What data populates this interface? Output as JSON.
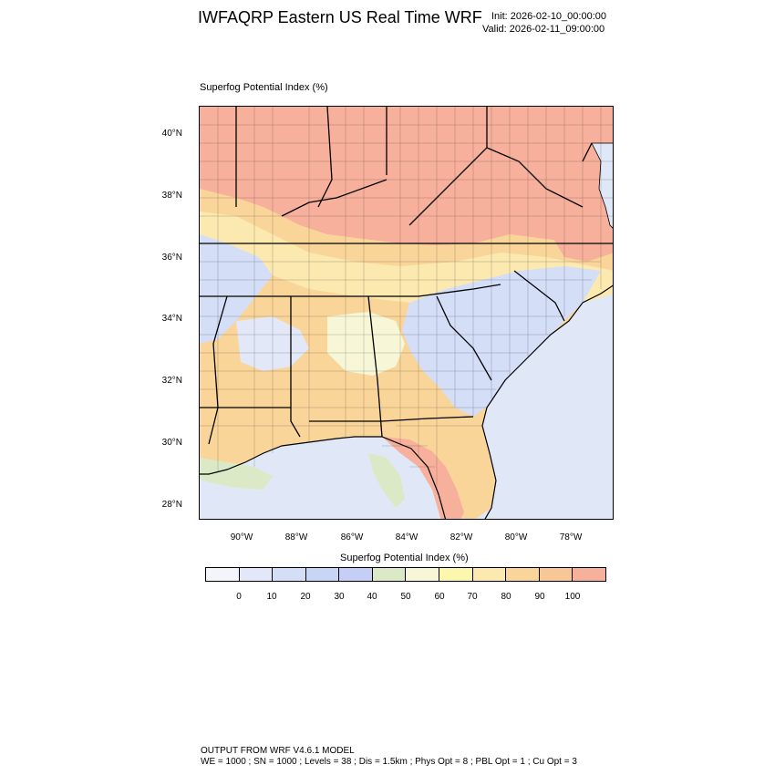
{
  "header": {
    "title": "IWFAQRP Eastern US Real Time WRF",
    "init": "Init: 2026-02-10_00:00:00",
    "valid": "Valid: 2026-02-11_09:00:00"
  },
  "map": {
    "field_label": "Superfog Potential Index   (%)",
    "lat_labels": [
      "40°N",
      "38°N",
      "36°N",
      "34°N",
      "32°N",
      "30°N",
      "28°N"
    ],
    "lon_labels": [
      "90°W",
      "88°W",
      "86°W",
      "84°W",
      "82°W",
      "80°W",
      "78°W"
    ],
    "extent": {
      "lon_min": -91.5,
      "lon_max": -76.5,
      "lat_min": 27.5,
      "lat_max": 40.9
    }
  },
  "colorbar": {
    "title": "Superfog Potential Index  (%)",
    "colors": [
      "#f3f5fa",
      "#e2e8f7",
      "#d4def7",
      "#c9d5f5",
      "#c5cff5",
      "#dce9c6",
      "#f7f7d7",
      "#fbf8ad",
      "#fbe9b0",
      "#f9d59a",
      "#f8c795",
      "#f7b09c"
    ],
    "ticks": [
      "0",
      "10",
      "20",
      "30",
      "40",
      "50",
      "60",
      "70",
      "80",
      "90",
      "100"
    ]
  },
  "footer": {
    "line1": "OUTPUT FROM WRF V4.6.1 MODEL",
    "line2": "WE = 1000 ; SN = 1000 ; Levels = 38 ; Dis = 1.5km ; Phys Opt = 8 ; PBL Opt = 1 ; Cu Opt = 3"
  }
}
